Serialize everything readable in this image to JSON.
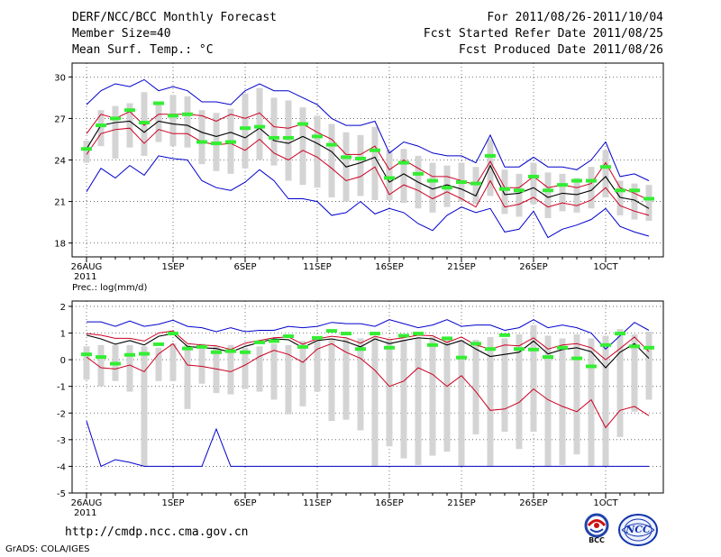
{
  "header": {
    "title": "DERF/NCC/BCC Monthly Forecast",
    "member_size": "Member Size=40",
    "variable_top": "Mean Surf. Temp.: °C",
    "period": "For 2011/08/26-2011/10/04",
    "started": "Fcst Started Refer Date 2011/08/25",
    "produced": "Fcst Produced Date 2011/08/26"
  },
  "footer": {
    "url": "http://cmdp.ncc.cma.gov.cn",
    "grads": "GrADS: COLA/IGES",
    "logo_bcc": "BCC",
    "logo_ncc": "NCC"
  },
  "colors": {
    "box": "#d4d4d4",
    "max_min": "#0000cc",
    "pct": "#cc0022",
    "mean": "#000000",
    "median": "#33ee33"
  },
  "chart_data": [
    {
      "type": "box-line",
      "title": "Mean Surf. Temp.: °C",
      "x_ticks": [
        {
          "day": 0,
          "label": "26AUG",
          "sub": "2011"
        },
        {
          "day": 6,
          "label": "1SEP"
        },
        {
          "day": 11,
          "label": "6SEP"
        },
        {
          "day": 16,
          "label": "11SEP"
        },
        {
          "day": 21,
          "label": "16SEP"
        },
        {
          "day": 26,
          "label": "21SEP"
        },
        {
          "day": 31,
          "label": "26SEP"
        },
        {
          "day": 36,
          "label": "1OCT"
        }
      ],
      "xlim": [
        -1,
        40
      ],
      "ylim": [
        17,
        31
      ],
      "yticks": [
        18,
        21,
        24,
        27,
        30
      ],
      "series": {
        "max": [
          28.0,
          29.0,
          29.5,
          29.3,
          29.8,
          29.0,
          29.3,
          29.0,
          28.2,
          28.2,
          28.0,
          29.0,
          29.5,
          29.0,
          29.0,
          28.5,
          28.0,
          27.0,
          26.5,
          26.5,
          26.8,
          24.5,
          25.3,
          25.0,
          24.5,
          24.3,
          24.3,
          23.8,
          25.8,
          23.5,
          23.5,
          24.2,
          23.5,
          23.5,
          23.3,
          24.0,
          25.3,
          22.8,
          23.0,
          22.5
        ],
        "p_hi": [
          25.9,
          27.3,
          27.0,
          27.5,
          26.5,
          27.3,
          27.3,
          27.3,
          27.2,
          26.8,
          27.3,
          27.0,
          27.4,
          26.4,
          26.3,
          26.6,
          26.0,
          25.5,
          24.4,
          24.4,
          25.0,
          23.3,
          24.0,
          23.4,
          22.8,
          22.8,
          22.5,
          22.2,
          23.9,
          22.0,
          22.0,
          22.8,
          22.0,
          22.2,
          22.0,
          22.3,
          23.8,
          22.0,
          21.6,
          21.1
        ],
        "mean": [
          24.8,
          26.5,
          26.7,
          26.8,
          26.0,
          26.8,
          26.6,
          26.5,
          26.0,
          25.7,
          26.0,
          25.6,
          26.3,
          25.4,
          25.2,
          25.7,
          25.2,
          24.6,
          23.5,
          23.8,
          24.2,
          22.4,
          23.0,
          22.4,
          21.9,
          22.2,
          21.9,
          21.4,
          23.6,
          21.5,
          21.6,
          22.0,
          21.3,
          21.6,
          21.5,
          21.8,
          22.8,
          21.3,
          21.1,
          20.5
        ],
        "p_lo": [
          24.4,
          25.9,
          26.2,
          26.3,
          25.2,
          26.2,
          25.9,
          25.9,
          25.3,
          25.1,
          25.2,
          24.7,
          25.5,
          24.5,
          24.0,
          24.7,
          24.2,
          23.4,
          22.5,
          22.8,
          23.5,
          21.5,
          22.2,
          21.8,
          21.2,
          21.7,
          21.2,
          20.6,
          22.5,
          20.6,
          20.8,
          21.3,
          20.6,
          20.9,
          20.7,
          21.1,
          22.0,
          20.7,
          20.3,
          20.0
        ],
        "min": [
          21.7,
          23.4,
          22.7,
          23.6,
          22.9,
          24.3,
          24.1,
          24.0,
          22.5,
          22.0,
          21.8,
          22.4,
          23.3,
          22.5,
          21.2,
          21.2,
          21.0,
          20.0,
          20.2,
          21.0,
          20.1,
          20.5,
          20.2,
          19.4,
          18.9,
          20.0,
          20.6,
          20.2,
          20.5,
          18.8,
          19.0,
          20.3,
          18.4,
          19.0,
          19.3,
          19.7,
          20.5,
          19.2,
          18.8,
          18.5
        ],
        "box_hi": [
          25.4,
          27.6,
          27.9,
          28.1,
          28.9,
          28.0,
          28.7,
          28.6,
          27.6,
          27.4,
          27.7,
          28.8,
          29.2,
          28.5,
          28.3,
          27.8,
          27.2,
          26.6,
          26.0,
          25.8,
          26.4,
          24.7,
          24.8,
          24.3,
          23.8,
          23.6,
          23.8,
          23.5,
          25.5,
          23.3,
          23.0,
          23.8,
          23.1,
          23.0,
          22.7,
          23.5,
          24.7,
          22.5,
          22.3,
          22.2
        ],
        "box_lo": [
          23.8,
          25.0,
          24.1,
          24.9,
          24.3,
          25.3,
          25.0,
          24.9,
          23.7,
          23.2,
          23.0,
          23.4,
          24.0,
          23.6,
          22.5,
          22.2,
          22.0,
          21.3,
          21.0,
          21.4,
          21.1,
          21.1,
          20.9,
          20.5,
          20.2,
          20.6,
          21.0,
          20.8,
          21.4,
          20.1,
          19.9,
          20.8,
          19.8,
          20.3,
          20.2,
          20.5,
          21.3,
          20.0,
          19.7,
          19.6
        ],
        "median": [
          24.8,
          26.5,
          27.0,
          27.6,
          26.7,
          28.1,
          27.2,
          27.3,
          25.3,
          25.2,
          25.3,
          26.3,
          26.4,
          25.6,
          25.6,
          26.6,
          25.7,
          25.1,
          24.2,
          24.1,
          24.7,
          22.7,
          23.8,
          23.0,
          22.5,
          22.0,
          22.4,
          22.3,
          24.3,
          21.9,
          21.8,
          22.8,
          21.8,
          22.2,
          22.5,
          22.5,
          23.5,
          21.8,
          21.8,
          21.2
        ]
      }
    },
    {
      "type": "box-line",
      "title": "Prec.: log(mm/d)",
      "x_ticks": [
        {
          "day": 0,
          "label": "26AUG",
          "sub": "2011"
        },
        {
          "day": 6,
          "label": "1SEP"
        },
        {
          "day": 11,
          "label": "6SEP"
        },
        {
          "day": 16,
          "label": "11SEP"
        },
        {
          "day": 21,
          "label": "16SEP"
        },
        {
          "day": 26,
          "label": "21SEP"
        },
        {
          "day": 31,
          "label": "26SEP"
        },
        {
          "day": 36,
          "label": "1OCT"
        }
      ],
      "xlim": [
        -1,
        40
      ],
      "ylim": [
        -5,
        2.2
      ],
      "yticks": [
        -5,
        -4,
        -3,
        -2,
        -1,
        0,
        1,
        2
      ],
      "series": {
        "max": [
          1.42,
          1.42,
          1.25,
          1.45,
          1.25,
          1.33,
          1.48,
          1.25,
          1.2,
          1.05,
          1.2,
          1.05,
          1.1,
          1.1,
          1.25,
          1.2,
          1.25,
          1.4,
          1.35,
          1.35,
          1.25,
          1.5,
          1.35,
          1.2,
          1.3,
          1.5,
          1.25,
          1.3,
          1.3,
          1.1,
          1.2,
          1.5,
          1.2,
          1.3,
          1.2,
          1.0,
          0.4,
          0.9,
          1.4,
          1.1
        ],
        "p_hi": [
          0.98,
          0.92,
          0.8,
          0.8,
          0.7,
          1.0,
          1.08,
          0.6,
          0.55,
          0.52,
          0.38,
          0.62,
          0.72,
          0.82,
          0.85,
          0.58,
          0.78,
          0.88,
          0.82,
          0.62,
          0.88,
          0.75,
          0.82,
          0.92,
          0.9,
          0.65,
          0.85,
          0.55,
          0.4,
          0.55,
          0.52,
          0.82,
          0.4,
          0.55,
          0.6,
          0.45,
          0.0,
          0.42,
          0.85,
          0.3
        ],
        "mean": [
          0.92,
          0.78,
          0.58,
          0.72,
          0.55,
          0.88,
          0.98,
          0.5,
          0.45,
          0.42,
          0.28,
          0.5,
          0.65,
          0.78,
          0.75,
          0.45,
          0.72,
          0.78,
          0.68,
          0.48,
          0.78,
          0.6,
          0.72,
          0.82,
          0.78,
          0.55,
          0.72,
          0.4,
          0.12,
          0.2,
          0.28,
          0.7,
          0.22,
          0.38,
          0.45,
          0.3,
          -0.3,
          0.28,
          0.6,
          0.05
        ],
        "p_lo": [
          0.1,
          -0.3,
          -0.35,
          -0.2,
          -0.45,
          0.22,
          0.6,
          -0.2,
          -0.25,
          -0.35,
          -0.45,
          -0.2,
          0.12,
          0.35,
          0.2,
          -0.1,
          0.4,
          0.6,
          0.28,
          0.05,
          -0.4,
          -1.0,
          -0.8,
          -0.3,
          -0.55,
          -1.0,
          -0.6,
          -1.2,
          -1.9,
          -1.85,
          -1.6,
          -1.1,
          -1.5,
          -1.75,
          -1.95,
          -1.5,
          -2.55,
          -1.9,
          -1.75,
          -2.1
        ],
        "min": [
          -2.3,
          -4.0,
          -3.75,
          -3.85,
          -4.0,
          -4.0,
          -4.0,
          -4.0,
          -4.0,
          -2.6,
          -4.0,
          -4.0,
          -4.0,
          -4.0,
          -4.0,
          -4.0,
          -4.0,
          -4.0,
          -4.0,
          -4.0,
          -4.0,
          -4.0,
          -4.0,
          -4.0,
          -4.0,
          -4.0,
          -4.0,
          -4.0,
          -4.0,
          -4.0,
          -4.0,
          -4.0,
          -4.0,
          -4.0,
          -4.0,
          -4.0,
          -4.0,
          -4.0,
          -4.0,
          -4.0
        ],
        "box_hi": [
          0.5,
          0.55,
          0.55,
          0.55,
          0.5,
          0.45,
          0.6,
          0.55,
          0.6,
          0.5,
          0.55,
          0.45,
          0.5,
          0.6,
          0.55,
          0.7,
          0.7,
          0.8,
          0.8,
          0.8,
          0.85,
          0.75,
          0.75,
          0.8,
          0.85,
          0.8,
          0.75,
          0.75,
          0.85,
          0.8,
          0.95,
          1.3,
          0.9,
          0.8,
          0.95,
          0.8,
          0.9,
          1.15,
          0.95,
          1.05
        ],
        "box_lo": [
          -0.75,
          -1.0,
          -0.8,
          -1.2,
          -4.0,
          -0.8,
          -0.8,
          -1.85,
          -0.9,
          -1.25,
          -1.3,
          -1.1,
          -1.2,
          -1.5,
          -2.05,
          -1.75,
          -1.2,
          -2.3,
          -2.25,
          -2.65,
          -4.0,
          -3.25,
          -3.7,
          -3.95,
          -3.6,
          -3.45,
          -4.0,
          -2.8,
          -4.0,
          -2.7,
          -3.35,
          -2.7,
          -4.0,
          -3.95,
          -3.55,
          -4.0,
          -4.0,
          -2.9,
          -1.95,
          -1.5
        ],
        "median": [
          0.2,
          0.1,
          -0.15,
          0.18,
          0.22,
          0.58,
          0.98,
          0.42,
          0.48,
          0.28,
          0.32,
          0.28,
          0.65,
          0.7,
          0.88,
          0.48,
          0.82,
          1.08,
          0.98,
          0.4,
          0.98,
          0.45,
          0.9,
          0.98,
          0.55,
          0.8,
          0.08,
          0.6,
          0.4,
          0.92,
          0.4,
          0.38,
          0.1,
          0.45,
          0.05,
          -0.25,
          0.55,
          0.98,
          0.5,
          0.45
        ]
      }
    }
  ]
}
